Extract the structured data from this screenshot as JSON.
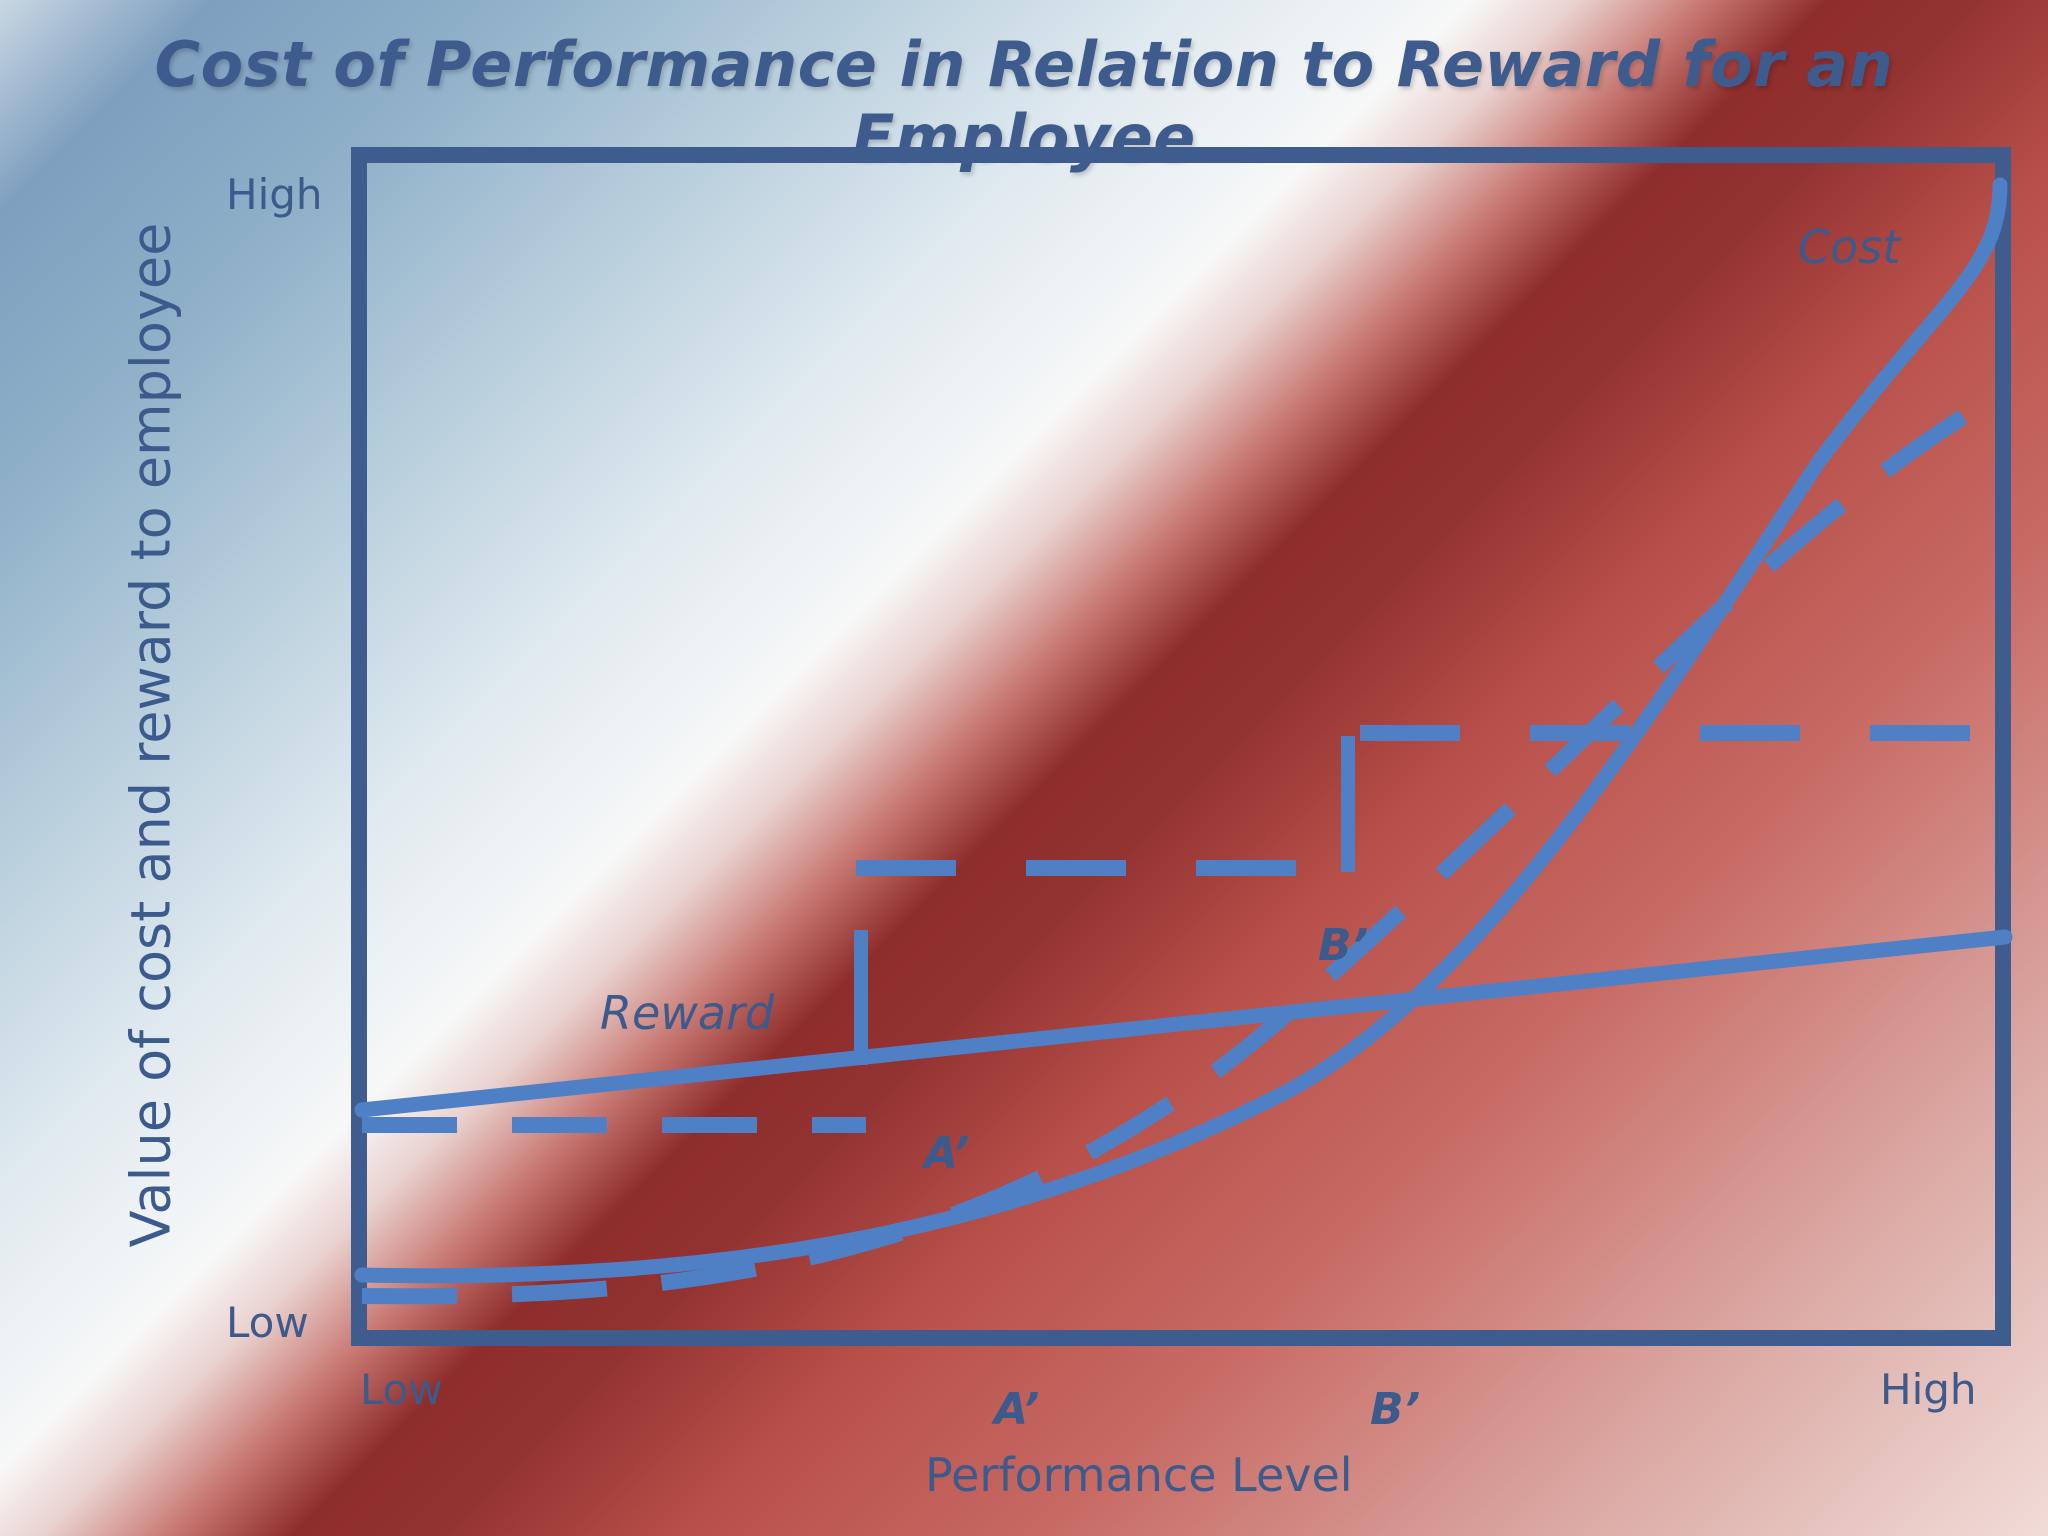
{
  "title": "Cost of Performance in Relation to Reward for an Employee",
  "y_axis": {
    "label": "Value of cost and reward to employee",
    "high": "High",
    "low": "Low"
  },
  "x_axis": {
    "label": "Performance Level",
    "low": "Low",
    "high": "High"
  },
  "curves": {
    "cost": "Cost",
    "reward": "Reward"
  },
  "markers": {
    "a_curve": "A’",
    "b_curve": "B’",
    "a_axis": "A’",
    "b_axis": "B’"
  },
  "colors": {
    "line": "#4f80c6",
    "frame": "#3e5c8e",
    "text": "#3c5a8b"
  }
}
